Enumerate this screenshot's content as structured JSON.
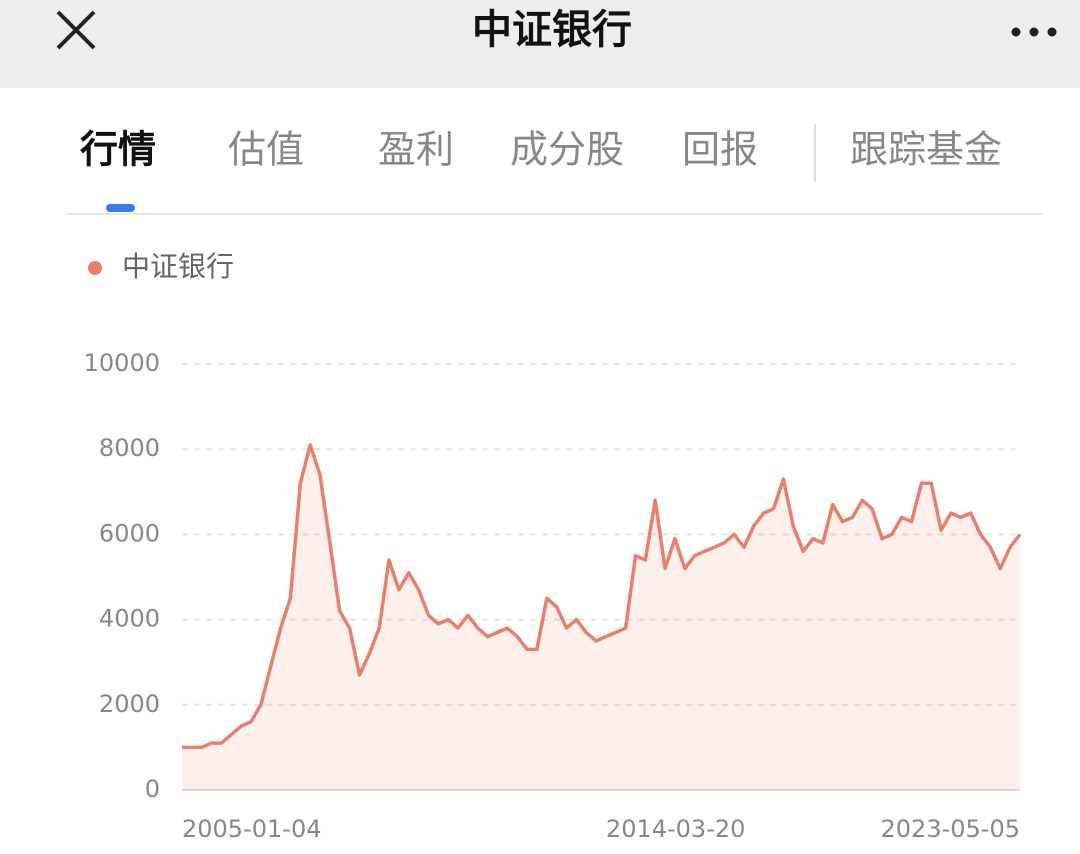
{
  "header": {
    "title": "中证银行"
  },
  "tabs": [
    "行情",
    "估值",
    "盈利",
    "成分股",
    "回报",
    "跟踪基金"
  ],
  "chart_data": {
    "type": "line",
    "categories": [
      "2005-01-04",
      null,
      null,
      null,
      null,
      null,
      null,
      null,
      null,
      null,
      null,
      null,
      null,
      null,
      null,
      null,
      null,
      null,
      null,
      null,
      null,
      null,
      null,
      null,
      null,
      null,
      null,
      null,
      null,
      null,
      null,
      null,
      null,
      null,
      null,
      null,
      null,
      null,
      null,
      null,
      null,
      null,
      null,
      "2014-03-20",
      null,
      null,
      null,
      null,
      null,
      null,
      null,
      null,
      null,
      null,
      null,
      null,
      null,
      null,
      null,
      null,
      null,
      null,
      null,
      null,
      null,
      null,
      null,
      null,
      null,
      null,
      null,
      null,
      null,
      null,
      null,
      null,
      null,
      null,
      null,
      null,
      null,
      null,
      null,
      null,
      null,
      "2023-05-05"
    ],
    "series": [
      {
        "name": "中证银行",
        "color": "#e8806c",
        "values": [
          1000,
          1000,
          1000,
          1100,
          1100,
          1300,
          1500,
          1600,
          2000,
          2900,
          3800,
          4500,
          7200,
          8100,
          7400,
          5800,
          4200,
          3800,
          2700,
          3200,
          3800,
          5400,
          4700,
          5100,
          4700,
          4100,
          3900,
          4000,
          3800,
          4100,
          3800,
          3600,
          3700,
          3800,
          3600,
          3300,
          3300,
          4500,
          4300,
          3800,
          4000,
          3700,
          3500,
          3600,
          3700,
          3800,
          5500,
          5400,
          6800,
          5200,
          5900,
          5200,
          5500,
          5600,
          5700,
          5800,
          6000,
          5700,
          6200,
          6500,
          6600,
          7300,
          6200,
          5600,
          5900,
          5800,
          6700,
          6300,
          6400,
          6800,
          6600,
          5900,
          6000,
          6400,
          6300,
          7200,
          7200,
          6100,
          6500,
          6400,
          6500,
          6000,
          5700,
          5200,
          5700,
          6000
        ]
      }
    ],
    "ylim": [
      0,
      10000
    ],
    "yticks": [
      0,
      2000,
      4000,
      6000,
      8000,
      10000
    ],
    "grid": true
  }
}
